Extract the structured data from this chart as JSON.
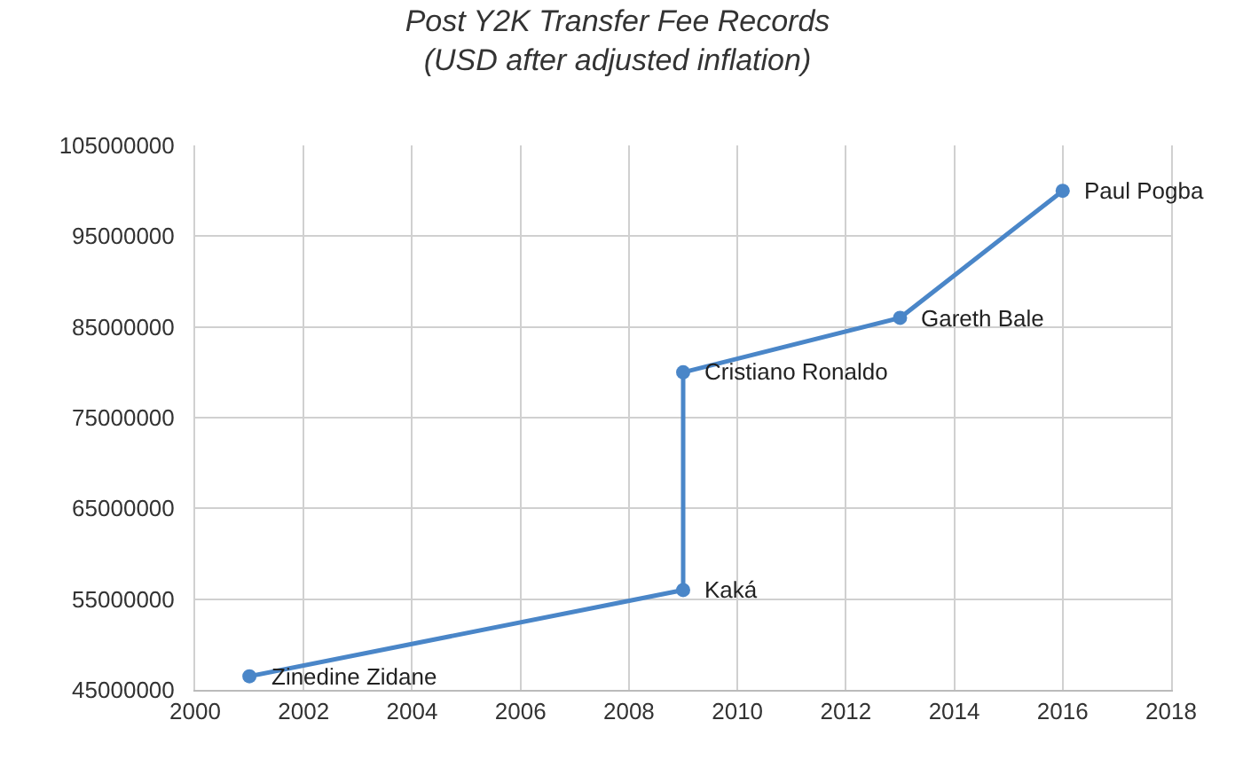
{
  "chart_data": {
    "type": "line",
    "title": "Post Y2K Transfer Fee Records",
    "subtitle": "(USD after adjusted inflation)",
    "x": [
      2001,
      2009,
      2009,
      2013,
      2016
    ],
    "series": [
      {
        "color": "#4a86c8",
        "values": [
          46500000,
          56000000,
          80000000,
          86000000,
          100000000
        ]
      }
    ],
    "annotations": [
      {
        "text": "Zinedine Zidane",
        "x": 2001,
        "y": 46500000
      },
      {
        "text": "Kaká",
        "x": 2009,
        "y": 56000000
      },
      {
        "text": "Cristiano Ronaldo",
        "x": 2009,
        "y": 80000000
      },
      {
        "text": "Gareth Bale",
        "x": 2013,
        "y": 86000000
      },
      {
        "text": "Paul Pogba",
        "x": 2016,
        "y": 100000000
      }
    ],
    "xlim": [
      2000,
      2018
    ],
    "xticks": [
      2000,
      2002,
      2004,
      2006,
      2008,
      2010,
      2012,
      2014,
      2016,
      2018
    ],
    "ylim": [
      45000000,
      105000000
    ],
    "yticks": [
      45000000,
      55000000,
      65000000,
      75000000,
      85000000,
      95000000,
      105000000
    ],
    "grid": true,
    "marker": "circle",
    "line_style": "solid"
  }
}
